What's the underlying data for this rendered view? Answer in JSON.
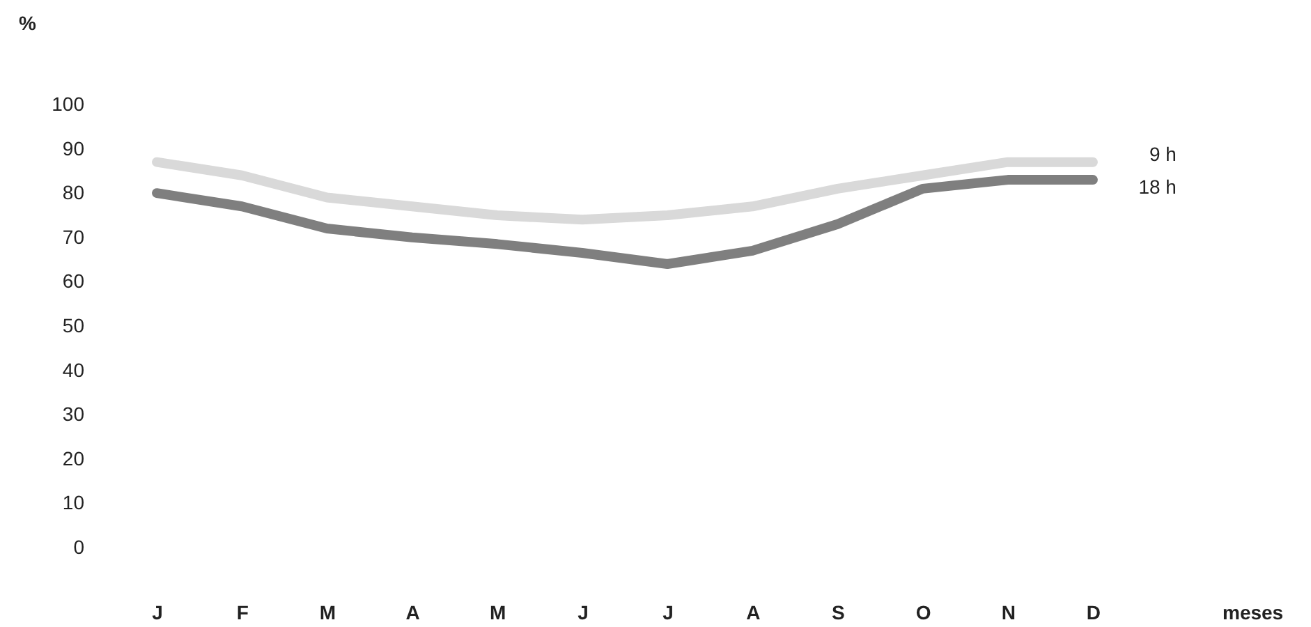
{
  "chart_data": {
    "type": "line",
    "xlabel": "meses",
    "ylabel": "%",
    "categories": [
      "J",
      "F",
      "M",
      "A",
      "M",
      "J",
      "J",
      "A",
      "S",
      "O",
      "N",
      "D"
    ],
    "series": [
      {
        "name": "9 h",
        "color": "#d9d9d9",
        "values": [
          87,
          84,
          79,
          77,
          75,
          74,
          75,
          77,
          81,
          84,
          87,
          87
        ]
      },
      {
        "name": "18 h",
        "color": "#7f7f7f",
        "values": [
          80,
          77,
          72,
          70,
          68.5,
          66.5,
          64,
          67,
          73,
          81,
          83,
          83
        ]
      }
    ],
    "ylim": [
      0,
      100
    ],
    "yticks": [
      0,
      10,
      20,
      30,
      40,
      50,
      60,
      70,
      80,
      90,
      100
    ],
    "line_style": "solid"
  }
}
